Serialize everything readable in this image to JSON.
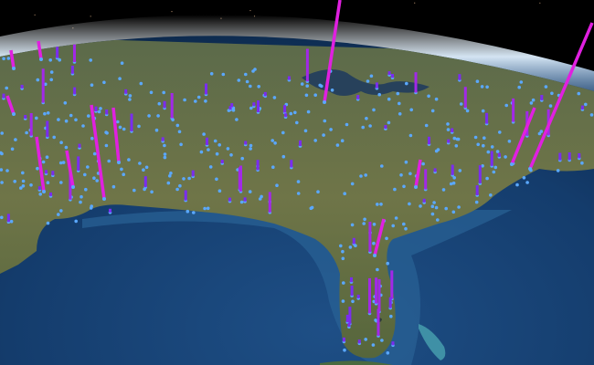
{
  "view": {
    "colors": {
      "space": "#000000",
      "atmosphere": "#cfe6ff",
      "ocean_deep": "#0d2a52",
      "ocean_shelf": "#2b5f8e",
      "land": "#6b7447",
      "point": "#5aa8ff",
      "bar_low": "#7a2cf0",
      "bar_high": "#e020e0"
    },
    "icons": [
      "globe",
      "data-point",
      "data-bar"
    ]
  }
}
